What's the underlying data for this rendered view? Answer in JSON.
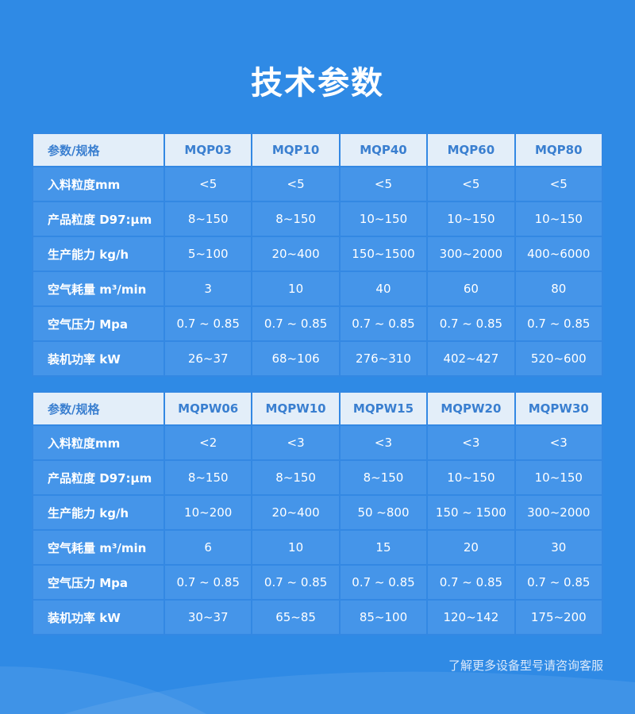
{
  "title": "技术参数",
  "tables": [
    {
      "header": [
        "参数/规格",
        "MQP03",
        "MQP10",
        "MQP40",
        "MQP60",
        "MQP80"
      ],
      "rows": [
        [
          "入料粒度mm",
          "<5",
          "<5",
          "<5",
          "<5",
          "<5"
        ],
        [
          "产品粒度 D97:μm",
          "8~150",
          "8~150",
          "10~150",
          "10~150",
          "10~150"
        ],
        [
          "生产能力 kg/h",
          "5~100",
          "20~400",
          "150~1500",
          "300~2000",
          "400~6000"
        ],
        [
          "空气耗量 m³/min",
          "3",
          "10",
          "40",
          "60",
          "80"
        ],
        [
          "空气压力 Mpa",
          "0.7 ~ 0.85",
          "0.7 ~ 0.85",
          "0.7 ~ 0.85",
          "0.7 ~ 0.85",
          "0.7 ~ 0.85"
        ],
        [
          "装机功率 kW",
          "26~37",
          "68~106",
          "276~310",
          "402~427",
          "520~600"
        ]
      ]
    },
    {
      "header": [
        "参数/规格",
        "MQPW06",
        "MQPW10",
        "MQPW15",
        "MQPW20",
        "MQPW30"
      ],
      "rows": [
        [
          "入料粒度mm",
          "<2",
          "<3",
          "<3",
          "<3",
          "<3"
        ],
        [
          "产品粒度 D97:μm",
          "8~150",
          "8~150",
          "8~150",
          "10~150",
          "10~150"
        ],
        [
          "生产能力 kg/h",
          "10~200",
          "20~400",
          "50 ~800",
          "150 ~ 1500",
          "300~2000"
        ],
        [
          "空气耗量 m³/min",
          "6",
          "10",
          "15",
          "20",
          "30"
        ],
        [
          "空气压力 Mpa",
          "0.7 ~ 0.85",
          "0.7 ~ 0.85",
          "0.7 ~ 0.85",
          "0.7 ~ 0.85",
          "0.7 ~ 0.85"
        ],
        [
          "装机功率 kW",
          "30~37",
          "65~85",
          "85~100",
          "120~142",
          "175~200"
        ]
      ]
    }
  ],
  "footer": "了解更多设备型号请咨询客服"
}
